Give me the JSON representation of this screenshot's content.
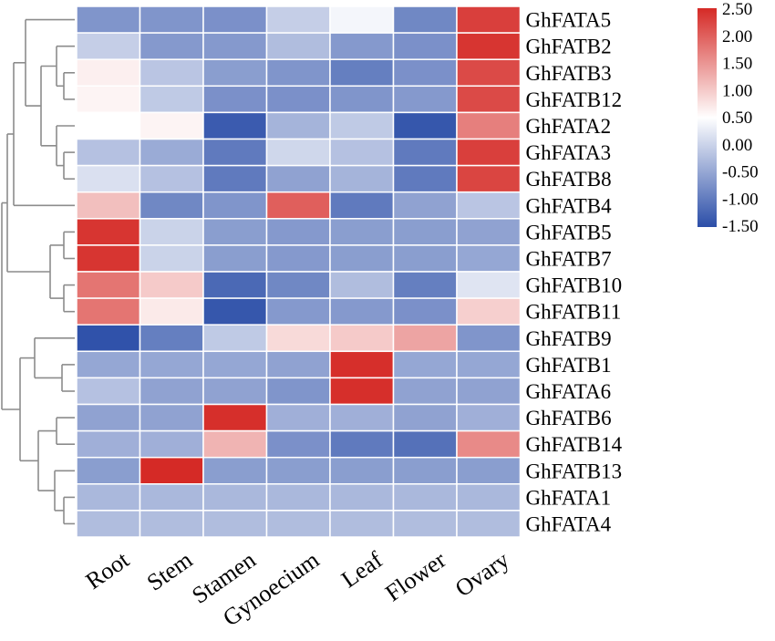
{
  "chart_data": {
    "type": "heatmap",
    "title": "",
    "rows": [
      "GhFATA5",
      "GhFATB2",
      "GhFATB3",
      "GhFATB12",
      "GhFATA2",
      "GhFATA3",
      "GhFATB8",
      "GhFATB4",
      "GhFATB5",
      "GhFATB7",
      "GhFATB10",
      "GhFATB11",
      "GhFATB9",
      "GhFATB1",
      "GhFATA6",
      "GhFATB6",
      "GhFATB14",
      "GhFATB13",
      "GhFATA1",
      "GhFATA4"
    ],
    "columns": [
      "Root",
      "Stem",
      "Stamen",
      "Gynoecium",
      "Leaf",
      "Flower",
      "Ovary"
    ],
    "values": [
      [
        -0.7,
        -0.7,
        -0.75,
        -0.05,
        0.4,
        -0.85,
        2.3
      ],
      [
        -0.05,
        -0.65,
        -0.65,
        -0.25,
        -0.65,
        -0.75,
        2.4
      ],
      [
        0.65,
        -0.15,
        -0.6,
        -0.7,
        -0.95,
        -0.75,
        2.2
      ],
      [
        0.6,
        -0.1,
        -0.75,
        -0.75,
        -0.7,
        -0.65,
        2.2
      ],
      [
        0.5,
        0.6,
        -1.35,
        -0.35,
        -0.1,
        -1.4,
        1.7
      ],
      [
        -0.2,
        -0.45,
        -1.0,
        0.05,
        -0.2,
        -1.0,
        2.3
      ],
      [
        0.15,
        -0.2,
        -1.0,
        -0.55,
        -0.35,
        -1.0,
        2.25
      ],
      [
        1.1,
        -0.85,
        -0.7,
        2.0,
        -1.0,
        -0.55,
        -0.15
      ],
      [
        2.4,
        0.0,
        -0.6,
        -0.65,
        -0.6,
        -0.6,
        -0.55
      ],
      [
        2.4,
        0.0,
        -0.6,
        -0.65,
        -0.6,
        -0.6,
        -0.5
      ],
      [
        1.8,
        1.0,
        -1.2,
        -0.85,
        -0.25,
        -0.95,
        0.2
      ],
      [
        1.8,
        0.7,
        -1.4,
        -0.65,
        -0.65,
        -0.75,
        0.95
      ],
      [
        -1.45,
        -0.95,
        -0.1,
        0.85,
        1.0,
        1.35,
        -0.7
      ],
      [
        -0.5,
        -0.5,
        -0.5,
        -0.55,
        2.45,
        -0.5,
        -0.5
      ],
      [
        -0.2,
        -0.55,
        -0.55,
        -0.7,
        2.45,
        -0.55,
        -0.55
      ],
      [
        -0.55,
        -0.55,
        2.45,
        -0.4,
        -0.4,
        -0.55,
        -0.4
      ],
      [
        -0.4,
        -0.4,
        1.2,
        -0.75,
        -1.0,
        -1.1,
        1.6
      ],
      [
        -0.6,
        2.5,
        -0.6,
        -0.6,
        -0.6,
        -0.6,
        -0.6
      ],
      [
        -0.3,
        -0.3,
        -0.3,
        -0.3,
        -0.3,
        -0.3,
        -0.3
      ],
      [
        -0.25,
        -0.25,
        -0.25,
        -0.25,
        -0.25,
        -0.25,
        -0.25
      ]
    ],
    "color_scale": {
      "min": -1.5,
      "max": 2.5,
      "colors": [
        "#2b4ea8",
        "#ffffff",
        "#d52a26"
      ],
      "tick_labels": [
        "2.50",
        "2.00",
        "1.50",
        "1.00",
        "0.50",
        "0.00",
        "-0.50",
        "-1.00",
        "-1.50"
      ]
    },
    "legend_position": "top-right",
    "dendrogram": "row-clustering, left side"
  }
}
